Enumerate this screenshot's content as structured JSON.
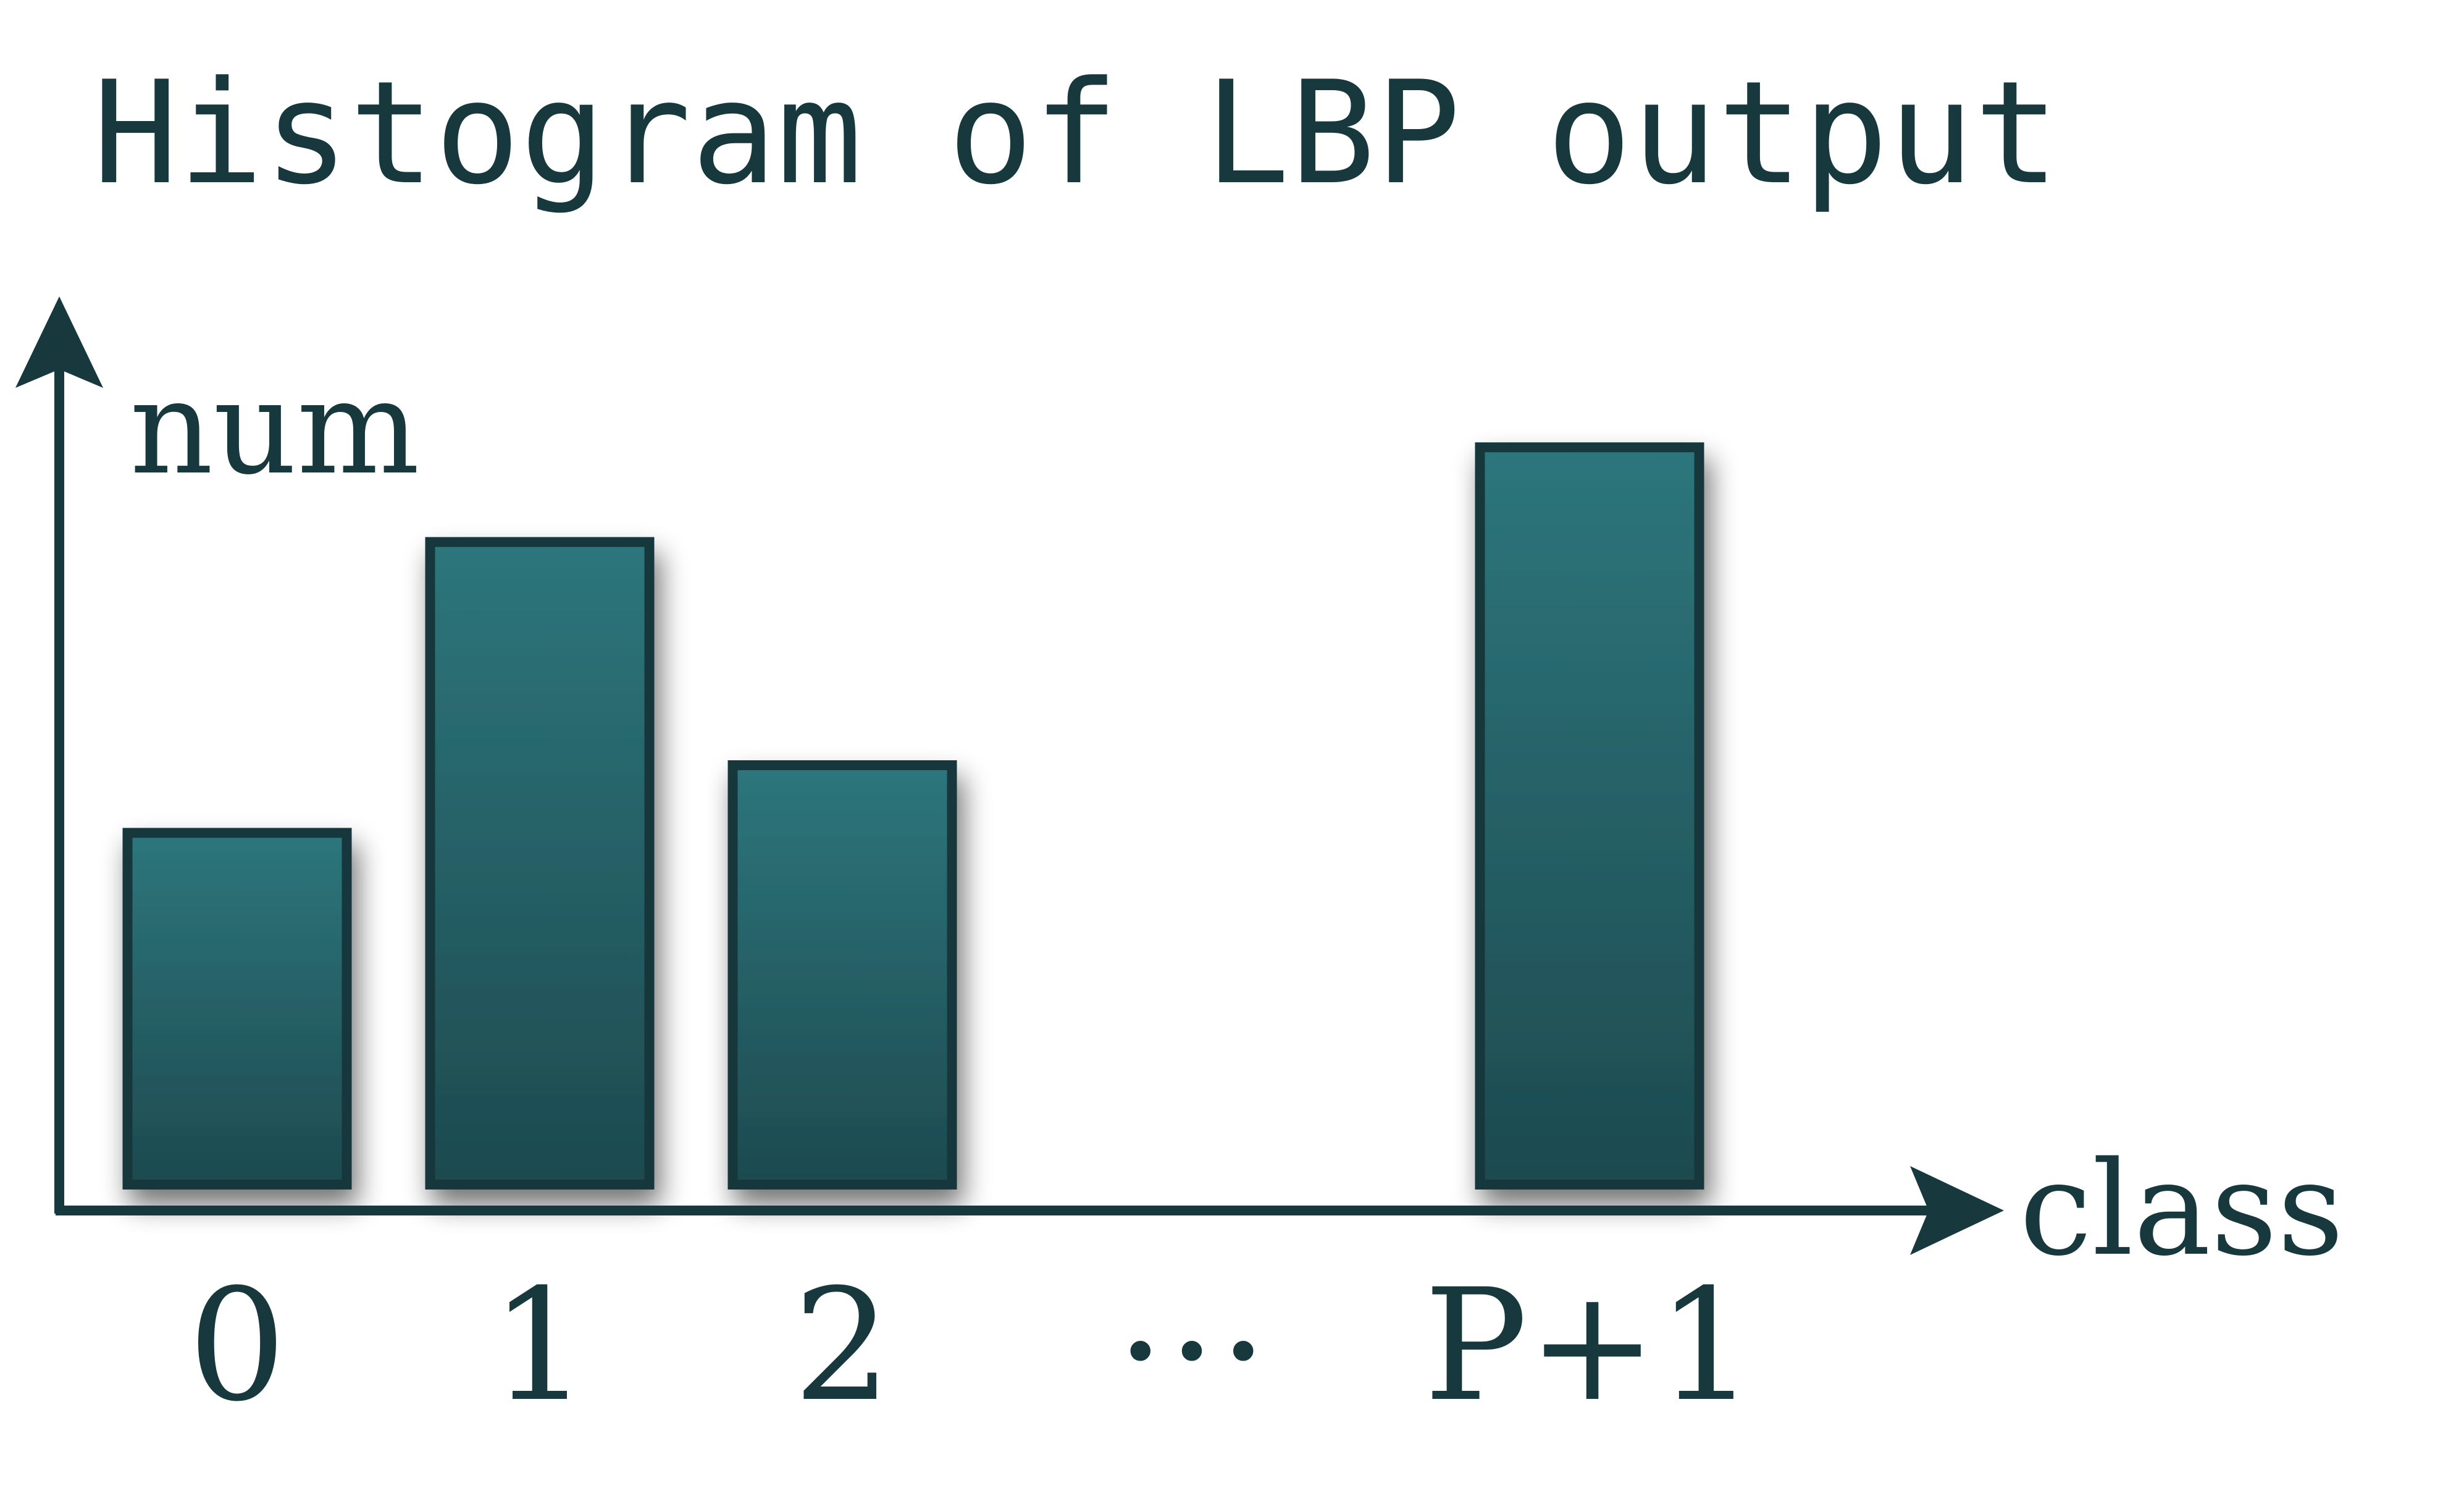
{
  "chart_data": {
    "type": "bar",
    "title": "Histogram of LBP output",
    "ylabel": "num",
    "xlabel": "class",
    "categories": [
      "0",
      "1",
      "2",
      "…",
      "P+1"
    ],
    "values": [
      5.2,
      9.5,
      6.2,
      null,
      10.9
    ],
    "ylim": [
      0,
      14.5
    ],
    "grid": false,
    "legend": "none",
    "colors": {
      "bar_top": "#2d767c",
      "bar_bottom": "#1d4a4f",
      "bar_border": "#17393d",
      "axis": "#17393d",
      "text": "#17393d"
    }
  }
}
